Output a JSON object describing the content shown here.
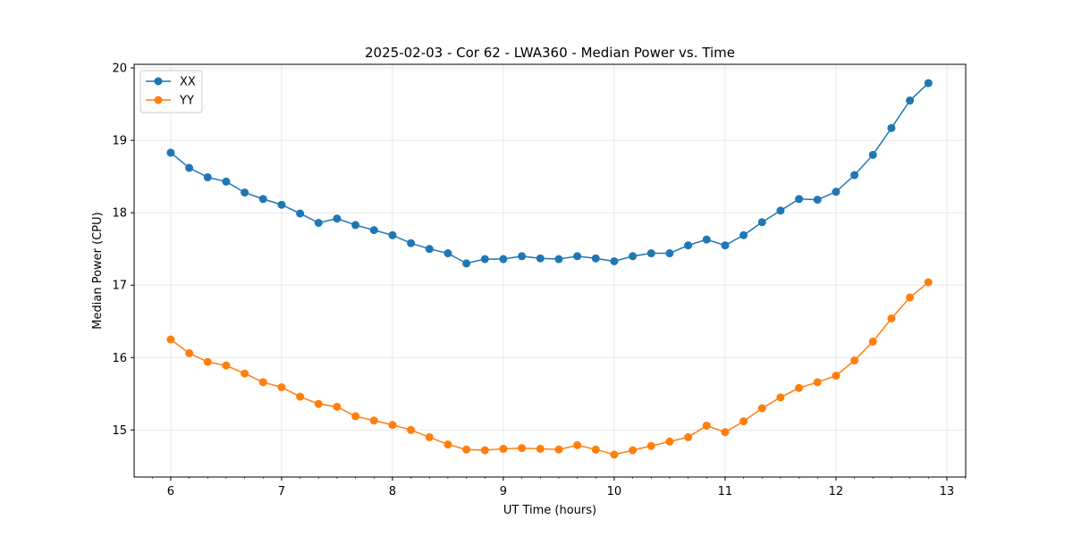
{
  "chart_data": {
    "type": "line",
    "title": "2025-02-03 - Cor 62 - LWA360 - Median Power vs. Time",
    "xlabel": "UT Time (hours)",
    "ylabel": "Median Power (CPU)",
    "xlim": [
      5.67,
      13.17
    ],
    "ylim": [
      14.35,
      20.05
    ],
    "xticks": [
      6,
      7,
      8,
      9,
      10,
      11,
      12,
      13
    ],
    "yticks": [
      15,
      16,
      17,
      18,
      19,
      20
    ],
    "grid": true,
    "legend_position": "top-left",
    "x": [
      6.0,
      6.1667,
      6.3333,
      6.5,
      6.6667,
      6.8333,
      7.0,
      7.1667,
      7.3333,
      7.5,
      7.6667,
      7.8333,
      8.0,
      8.1667,
      8.3333,
      8.5,
      8.6667,
      8.8333,
      9.0,
      9.1667,
      9.3333,
      9.5,
      9.6667,
      9.8333,
      10.0,
      10.1667,
      10.3333,
      10.5,
      10.6667,
      10.8333,
      11.0,
      11.1667,
      11.3333,
      11.5,
      11.6667,
      11.8333,
      12.0,
      12.1667,
      12.3333,
      12.5,
      12.6667,
      12.8333
    ],
    "series": [
      {
        "name": "XX",
        "color": "#1f77b4",
        "values": [
          18.83,
          18.62,
          18.49,
          18.43,
          18.28,
          18.19,
          18.11,
          17.99,
          17.86,
          17.92,
          17.83,
          17.76,
          17.69,
          17.58,
          17.5,
          17.44,
          17.3,
          17.36,
          17.36,
          17.4,
          17.37,
          17.36,
          17.4,
          17.37,
          17.33,
          17.4,
          17.44,
          17.44,
          17.55,
          17.63,
          17.55,
          17.69,
          17.87,
          18.03,
          18.19,
          18.18,
          18.29,
          18.52,
          18.8,
          19.17,
          19.55,
          19.79
        ]
      },
      {
        "name": "YY",
        "color": "#ff7f0e",
        "values": [
          16.25,
          16.06,
          15.94,
          15.89,
          15.78,
          15.66,
          15.59,
          15.46,
          15.36,
          15.32,
          15.19,
          15.13,
          15.07,
          15.0,
          14.9,
          14.8,
          14.73,
          14.72,
          14.74,
          14.75,
          14.74,
          14.73,
          14.79,
          14.73,
          14.66,
          14.72,
          14.78,
          14.84,
          14.9,
          15.06,
          14.97,
          15.12,
          15.3,
          15.45,
          15.58,
          15.66,
          15.75,
          15.96,
          16.22,
          16.54,
          16.83,
          17.04
        ]
      }
    ]
  }
}
